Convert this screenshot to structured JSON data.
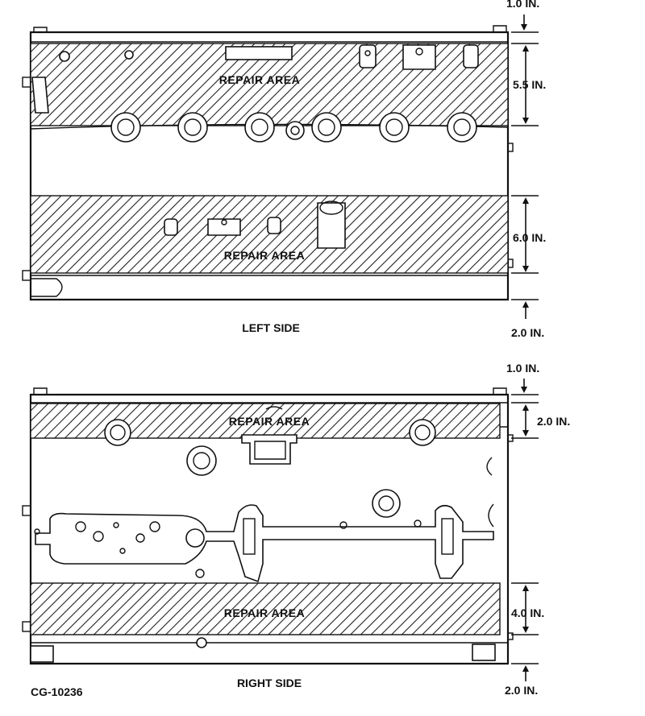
{
  "labels": {
    "repair_area": "REPAIR AREA",
    "left_side": "LEFT SIDE",
    "right_side": "RIGHT SIDE",
    "figure_code": "CG-10236"
  },
  "left_dims": {
    "top": "1.0 IN.",
    "repair_top": "5.5 IN.",
    "repair_bottom": "6.0 IN.",
    "bottom": "2.0 IN."
  },
  "right_dims": {
    "top": "1.0 IN.",
    "repair_top": "2.0 IN.",
    "repair_bottom": "4.0 IN.",
    "bottom": "2.0 IN."
  }
}
